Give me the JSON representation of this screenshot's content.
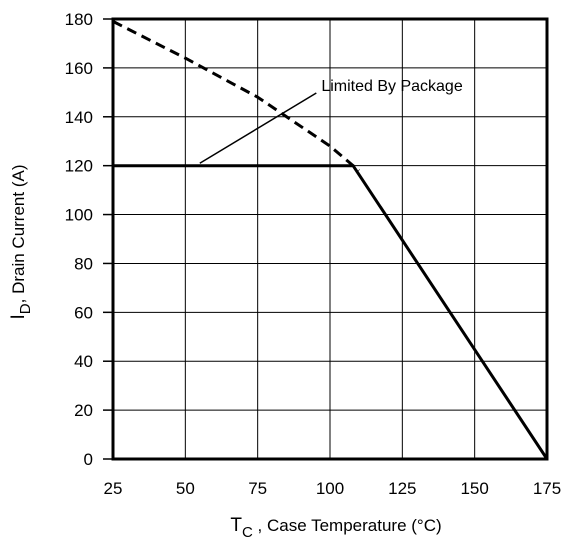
{
  "chart_data": {
    "type": "line",
    "title": "",
    "xlabel": {
      "main": "T",
      "sub": "C",
      "rest": " , Case Temperature (°C)"
    },
    "ylabel": {
      "main": "I",
      "sub": "D",
      "rest": ",  Drain Current (A)"
    },
    "xlim": [
      25,
      175
    ],
    "ylim": [
      0,
      180
    ],
    "xticks": [
      25,
      50,
      75,
      100,
      125,
      150,
      175
    ],
    "yticks": [
      0,
      20,
      40,
      60,
      80,
      100,
      120,
      140,
      160,
      180
    ],
    "grid": true,
    "series": [
      {
        "style": "dashed",
        "x": [
          25,
          50,
          75,
          100,
          110
        ],
        "y": [
          179,
          164,
          148,
          128,
          118
        ]
      },
      {
        "style": "solid",
        "x": [
          25,
          108,
          175
        ],
        "y": [
          120,
          120,
          0
        ]
      }
    ],
    "annotations": [
      {
        "text": "Limited By Package",
        "x": 55,
        "y": 121,
        "text_x": 97,
        "text_y": 153
      }
    ]
  }
}
